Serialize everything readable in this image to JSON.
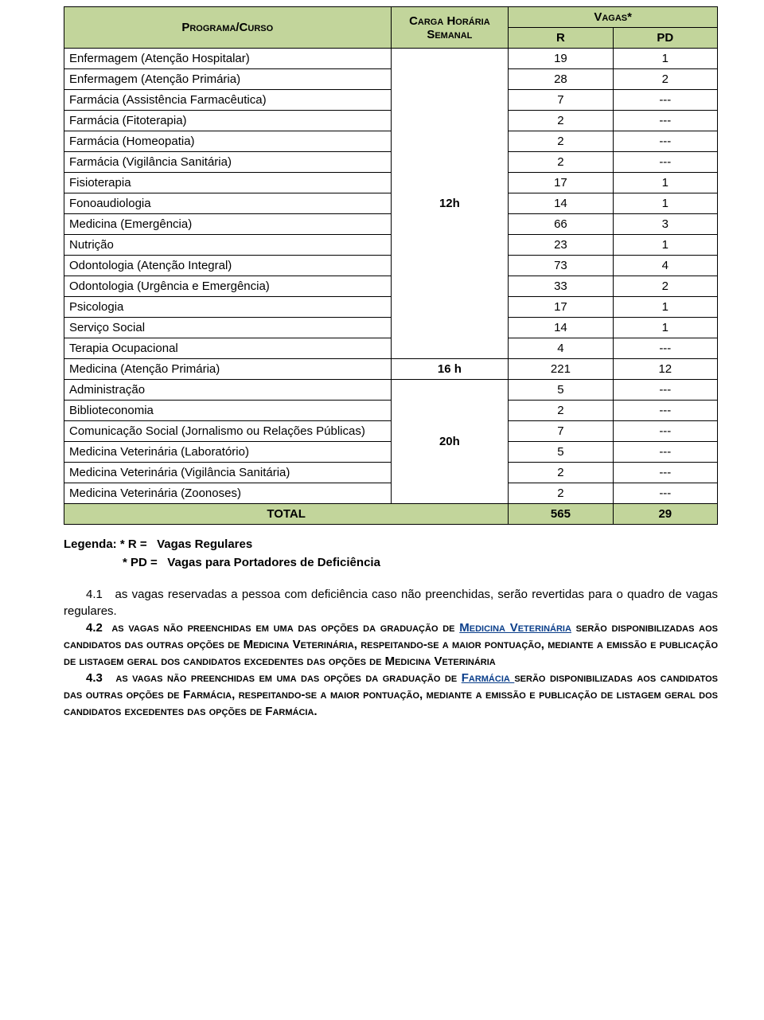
{
  "table": {
    "header": {
      "programa": "Programa/Curso",
      "carga": "Carga Horária Semanal",
      "vagas": "Vagas*",
      "r": "R",
      "pd": "PD"
    },
    "colors": {
      "header_bg": "#c2d59b",
      "border": "#000000",
      "text": "#000000",
      "link": "#0a3e8a"
    },
    "groups": [
      {
        "carga": "12h",
        "rows": [
          {
            "label": "Enfermagem (Atenção Hospitalar)",
            "r": "19",
            "pd": "1"
          },
          {
            "label": "Enfermagem (Atenção Primária)",
            "r": "28",
            "pd": "2"
          },
          {
            "label": "Farmácia (Assistência Farmacêutica)",
            "r": "7",
            "pd": "---"
          },
          {
            "label": "Farmácia (Fitoterapia)",
            "r": "2",
            "pd": "---"
          },
          {
            "label": "Farmácia (Homeopatia)",
            "r": "2",
            "pd": "---"
          },
          {
            "label": "Farmácia (Vigilância Sanitária)",
            "r": "2",
            "pd": "---"
          },
          {
            "label": "Fisioterapia",
            "r": "17",
            "pd": "1"
          },
          {
            "label": "Fonoaudiologia",
            "r": "14",
            "pd": "1"
          },
          {
            "label": "Medicina (Emergência)",
            "r": "66",
            "pd": "3"
          },
          {
            "label": "Nutrição",
            "r": "23",
            "pd": "1"
          },
          {
            "label": "Odontologia (Atenção Integral)",
            "r": "73",
            "pd": "4"
          },
          {
            "label": "Odontologia (Urgência e Emergência)",
            "r": "33",
            "pd": "2"
          },
          {
            "label": "Psicologia",
            "r": "17",
            "pd": "1"
          },
          {
            "label": "Serviço Social",
            "r": "14",
            "pd": "1"
          },
          {
            "label": "Terapia Ocupacional",
            "r": "4",
            "pd": "---"
          }
        ]
      },
      {
        "carga": "16 h",
        "rows": [
          {
            "label": "Medicina (Atenção Primária)",
            "r": "221",
            "pd": "12"
          }
        ]
      },
      {
        "carga": "20h",
        "rows": [
          {
            "label": "Administração",
            "r": "5",
            "pd": "---"
          },
          {
            "label": "Biblioteconomia",
            "r": "2",
            "pd": "---"
          },
          {
            "label": "Comunicação Social (Jornalismo ou Relações Públicas)",
            "r": "7",
            "pd": "---"
          },
          {
            "label": "Medicina Veterinária (Laboratório)",
            "r": "5",
            "pd": "---"
          },
          {
            "label": "Medicina Veterinária (Vigilância Sanitária)",
            "r": "2",
            "pd": "---"
          },
          {
            "label": "Medicina Veterinária (Zoonoses)",
            "r": "2",
            "pd": "---"
          }
        ]
      }
    ],
    "total": {
      "label": "TOTAL",
      "r": "565",
      "pd": "29"
    }
  },
  "legend": {
    "l1_prefix": "Legenda: * R   =",
    "l1_text": "Vagas Regulares",
    "l2_prefix": "* PD =",
    "l2_text": "Vagas para Portadores de Deficiência"
  },
  "paras": {
    "p41_num": "4.1",
    "p41_text": "as vagas reservadas a pessoa com deficiência caso não preenchidas, serão revertidas para o quadro de vagas regulares.",
    "p42_num": "4.2",
    "p42_a": "as vagas não preenchidas em uma das opções da graduação de ",
    "p42_link": "Medicina Veterinária",
    "p42_b": " serão disponibilizadas aos candidatos das outras opções de Medicina Veterinária, respeitando-se a maior pontuação, mediante a emissão e publicação de listagem geral dos candidatos excedentes das opções de Medicina Veterinária",
    "p43_num": "4.3",
    "p43_a": "as vagas não preenchidas em uma das opções da graduação de ",
    "p43_link": "Farmácia ",
    "p43_b": "serão disponibilizadas aos candidatos das outras opções de Farmácia, respeitando-se a maior pontuação, mediante a emissão e publicação de listagem geral dos candidatos excedentes das opções de Farmácia."
  }
}
